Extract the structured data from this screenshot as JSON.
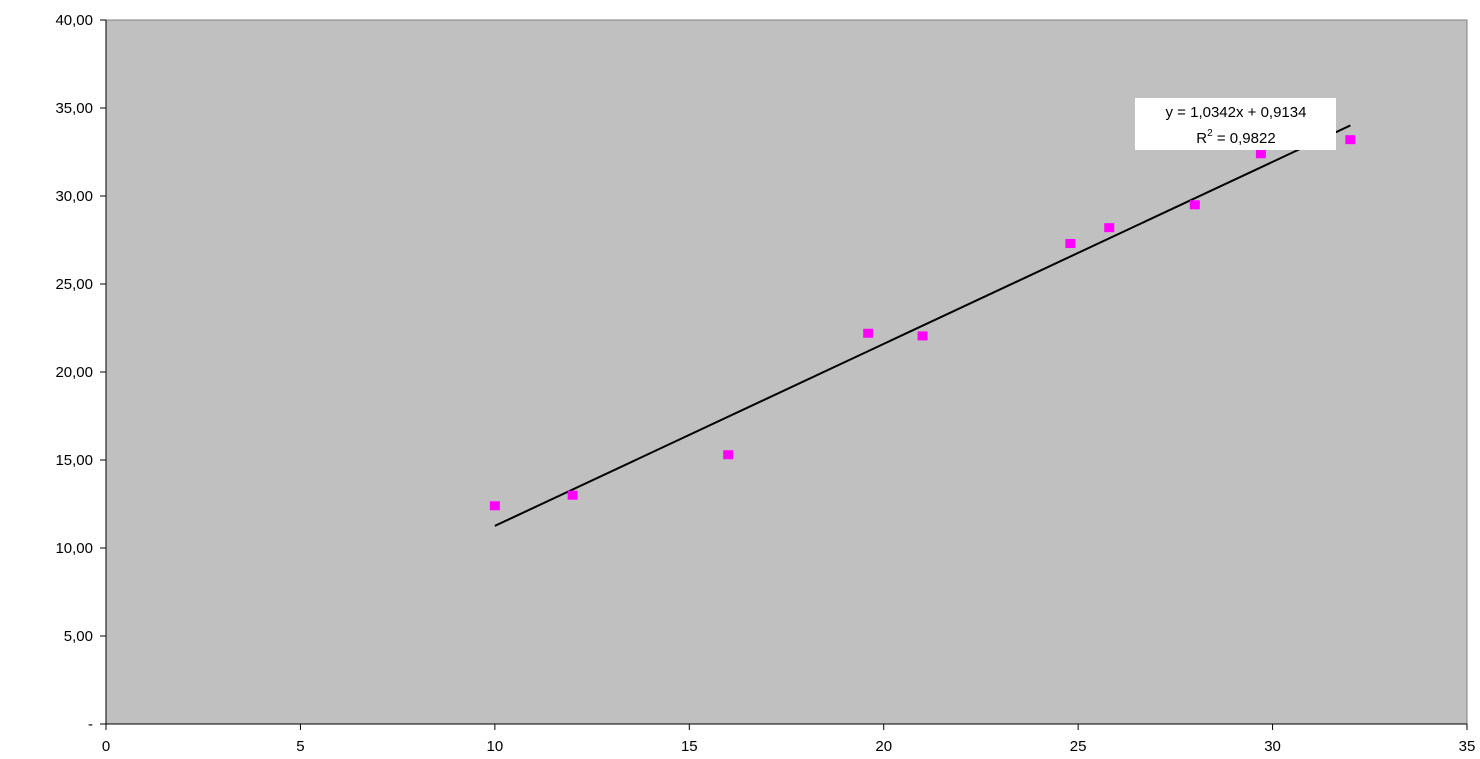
{
  "chart_data": {
    "type": "scatter",
    "title": "",
    "xlabel": "",
    "ylabel": "",
    "xlim": [
      0,
      35
    ],
    "ylim": [
      0,
      40
    ],
    "x_ticks": [
      0,
      5,
      10,
      15,
      20,
      25,
      30,
      35
    ],
    "x_tick_labels": [
      "0",
      "5",
      "10",
      "15",
      "20",
      "25",
      "30",
      "35"
    ],
    "y_ticks": [
      0,
      5,
      10,
      15,
      20,
      25,
      30,
      35,
      40
    ],
    "y_tick_labels": [
      "-",
      "5,00",
      "10,00",
      "15,00",
      "20,00",
      "25,00",
      "30,00",
      "35,00",
      "40,00"
    ],
    "grid": false,
    "plot_background": "#c0c0c0",
    "marker_color": "#ff00ff",
    "marker_shape": "square",
    "series": [
      {
        "x": [
          10,
          12,
          16,
          19.6,
          21,
          24.8,
          25.8,
          28,
          29.7,
          32
        ],
        "y": [
          12.4,
          13.0,
          15.3,
          22.2,
          22.05,
          27.3,
          28.2,
          29.5,
          32.4,
          33.2
        ]
      }
    ],
    "trendline": {
      "type": "linear",
      "slope": 1.0342,
      "intercept": 0.9134,
      "x_range": [
        10,
        32
      ],
      "color": "#000000",
      "equation_label": "y = 1,0342x + 0,9134",
      "r2_prefix": "R",
      "r2_superscript": "2",
      "r2_value": " = 0,9822"
    }
  }
}
